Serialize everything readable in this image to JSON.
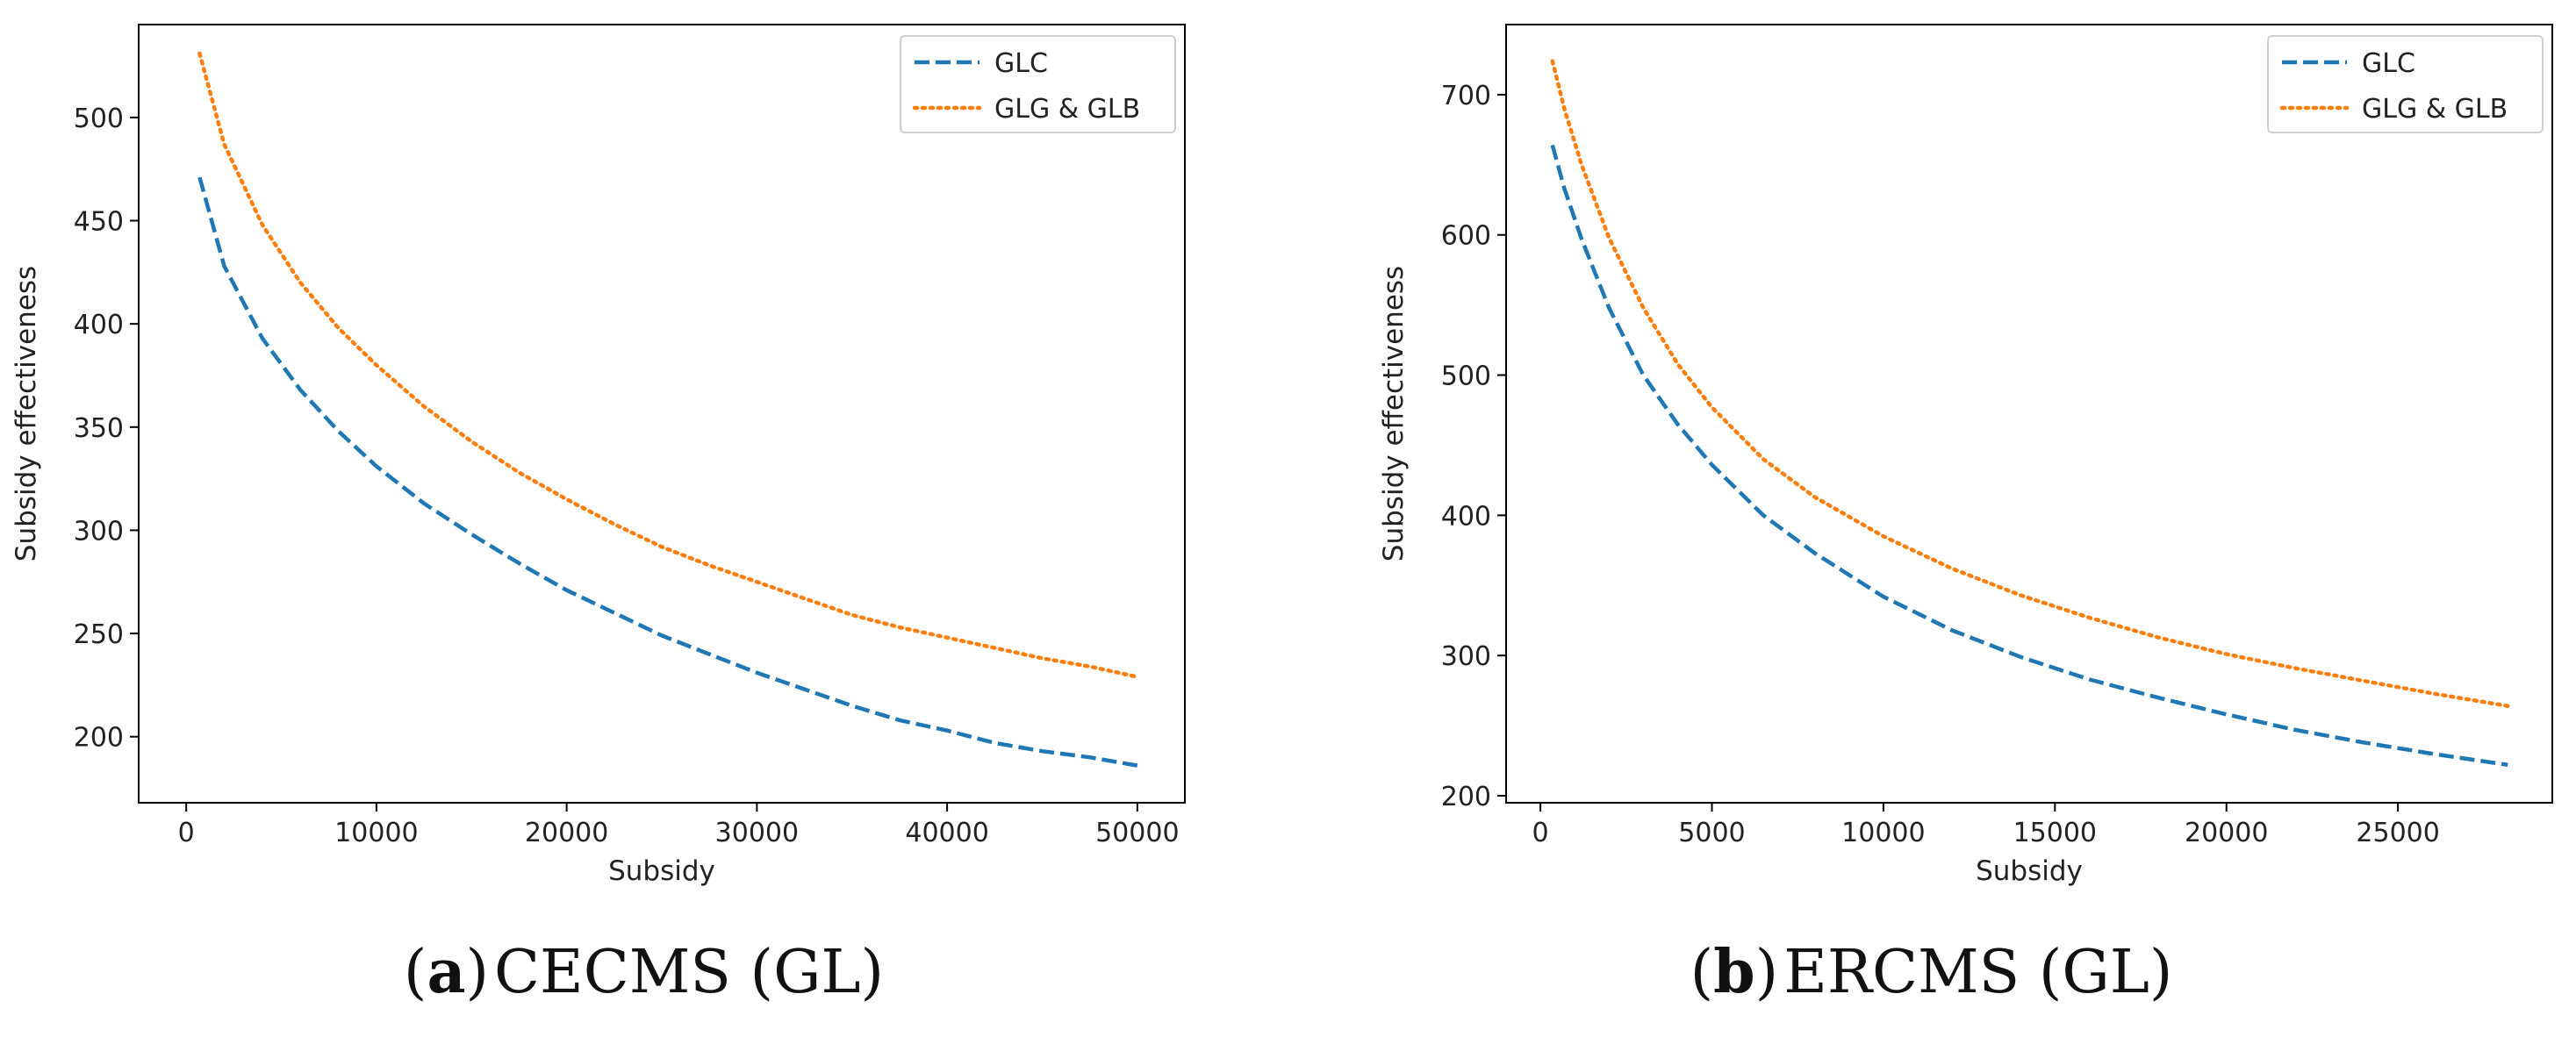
{
  "chart_data": [
    {
      "type": "line",
      "id": "a",
      "caption_letter": "a",
      "caption_text": "CECMS (GL)",
      "xlabel": "Subsidy",
      "ylabel": "Subsidy effectiveness",
      "xlim": [
        -2500,
        52500
      ],
      "ylim": [
        168,
        545
      ],
      "xticks": [
        0,
        10000,
        20000,
        30000,
        40000,
        50000
      ],
      "yticks": [
        200,
        250,
        300,
        350,
        400,
        450,
        500
      ],
      "legend_position": "top-right",
      "series": [
        {
          "name": "GLC",
          "color": "#1f77b4",
          "style": "dashed",
          "x": [
            700,
            2000,
            4000,
            6000,
            8000,
            10000,
            12500,
            15000,
            17500,
            20000,
            22500,
            25000,
            27500,
            30000,
            32500,
            35000,
            37500,
            40000,
            42500,
            45000,
            47500,
            50000
          ],
          "y": [
            471,
            428,
            393,
            368,
            348,
            331,
            313,
            298,
            284,
            271,
            260,
            249,
            240,
            231,
            223,
            215,
            208,
            203,
            197,
            193,
            190,
            186
          ]
        },
        {
          "name": "GLG & GLB",
          "color": "#ff7f0e",
          "style": "dotted",
          "x": [
            700,
            2000,
            4000,
            6000,
            8000,
            10000,
            12500,
            15000,
            17500,
            20000,
            22500,
            25000,
            27500,
            30000,
            32500,
            35000,
            37500,
            40000,
            42500,
            45000,
            47500,
            50000
          ],
          "y": [
            531,
            487,
            448,
            420,
            398,
            380,
            360,
            343,
            328,
            315,
            303,
            292,
            283,
            275,
            267,
            259,
            253,
            248,
            243,
            238,
            234,
            229
          ]
        }
      ]
    },
    {
      "type": "line",
      "id": "b",
      "caption_letter": "b",
      "caption_text": "ERCMS (GL)",
      "xlabel": "Subsidy",
      "ylabel": "Subsidy effectiveness",
      "xlim": [
        -1000,
        29500
      ],
      "ylim": [
        195,
        750
      ],
      "xticks": [
        0,
        5000,
        10000,
        15000,
        20000,
        25000
      ],
      "yticks": [
        200,
        300,
        400,
        500,
        600,
        700
      ],
      "legend_position": "top-right",
      "series": [
        {
          "name": "GLC",
          "color": "#1f77b4",
          "style": "dashed",
          "x": [
            350,
            700,
            1200,
            2000,
            3000,
            4000,
            5000,
            6500,
            8000,
            10000,
            12000,
            14000,
            16000,
            18000,
            20000,
            22000,
            24000,
            26000,
            28200
          ],
          "y": [
            664,
            633,
            597,
            548,
            500,
            465,
            436,
            400,
            373,
            342,
            318,
            299,
            283,
            270,
            258,
            247,
            238,
            230,
            222
          ]
        },
        {
          "name": "GLG & GLB",
          "color": "#ff7f0e",
          "style": "dotted",
          "x": [
            350,
            700,
            1200,
            2000,
            3000,
            4000,
            5000,
            6500,
            8000,
            10000,
            12000,
            14000,
            16000,
            18000,
            20000,
            22000,
            24000,
            26000,
            28200
          ],
          "y": [
            724,
            690,
            650,
            598,
            548,
            508,
            477,
            440,
            413,
            385,
            362,
            343,
            327,
            313,
            301,
            291,
            282,
            273,
            264
          ]
        }
      ]
    }
  ]
}
